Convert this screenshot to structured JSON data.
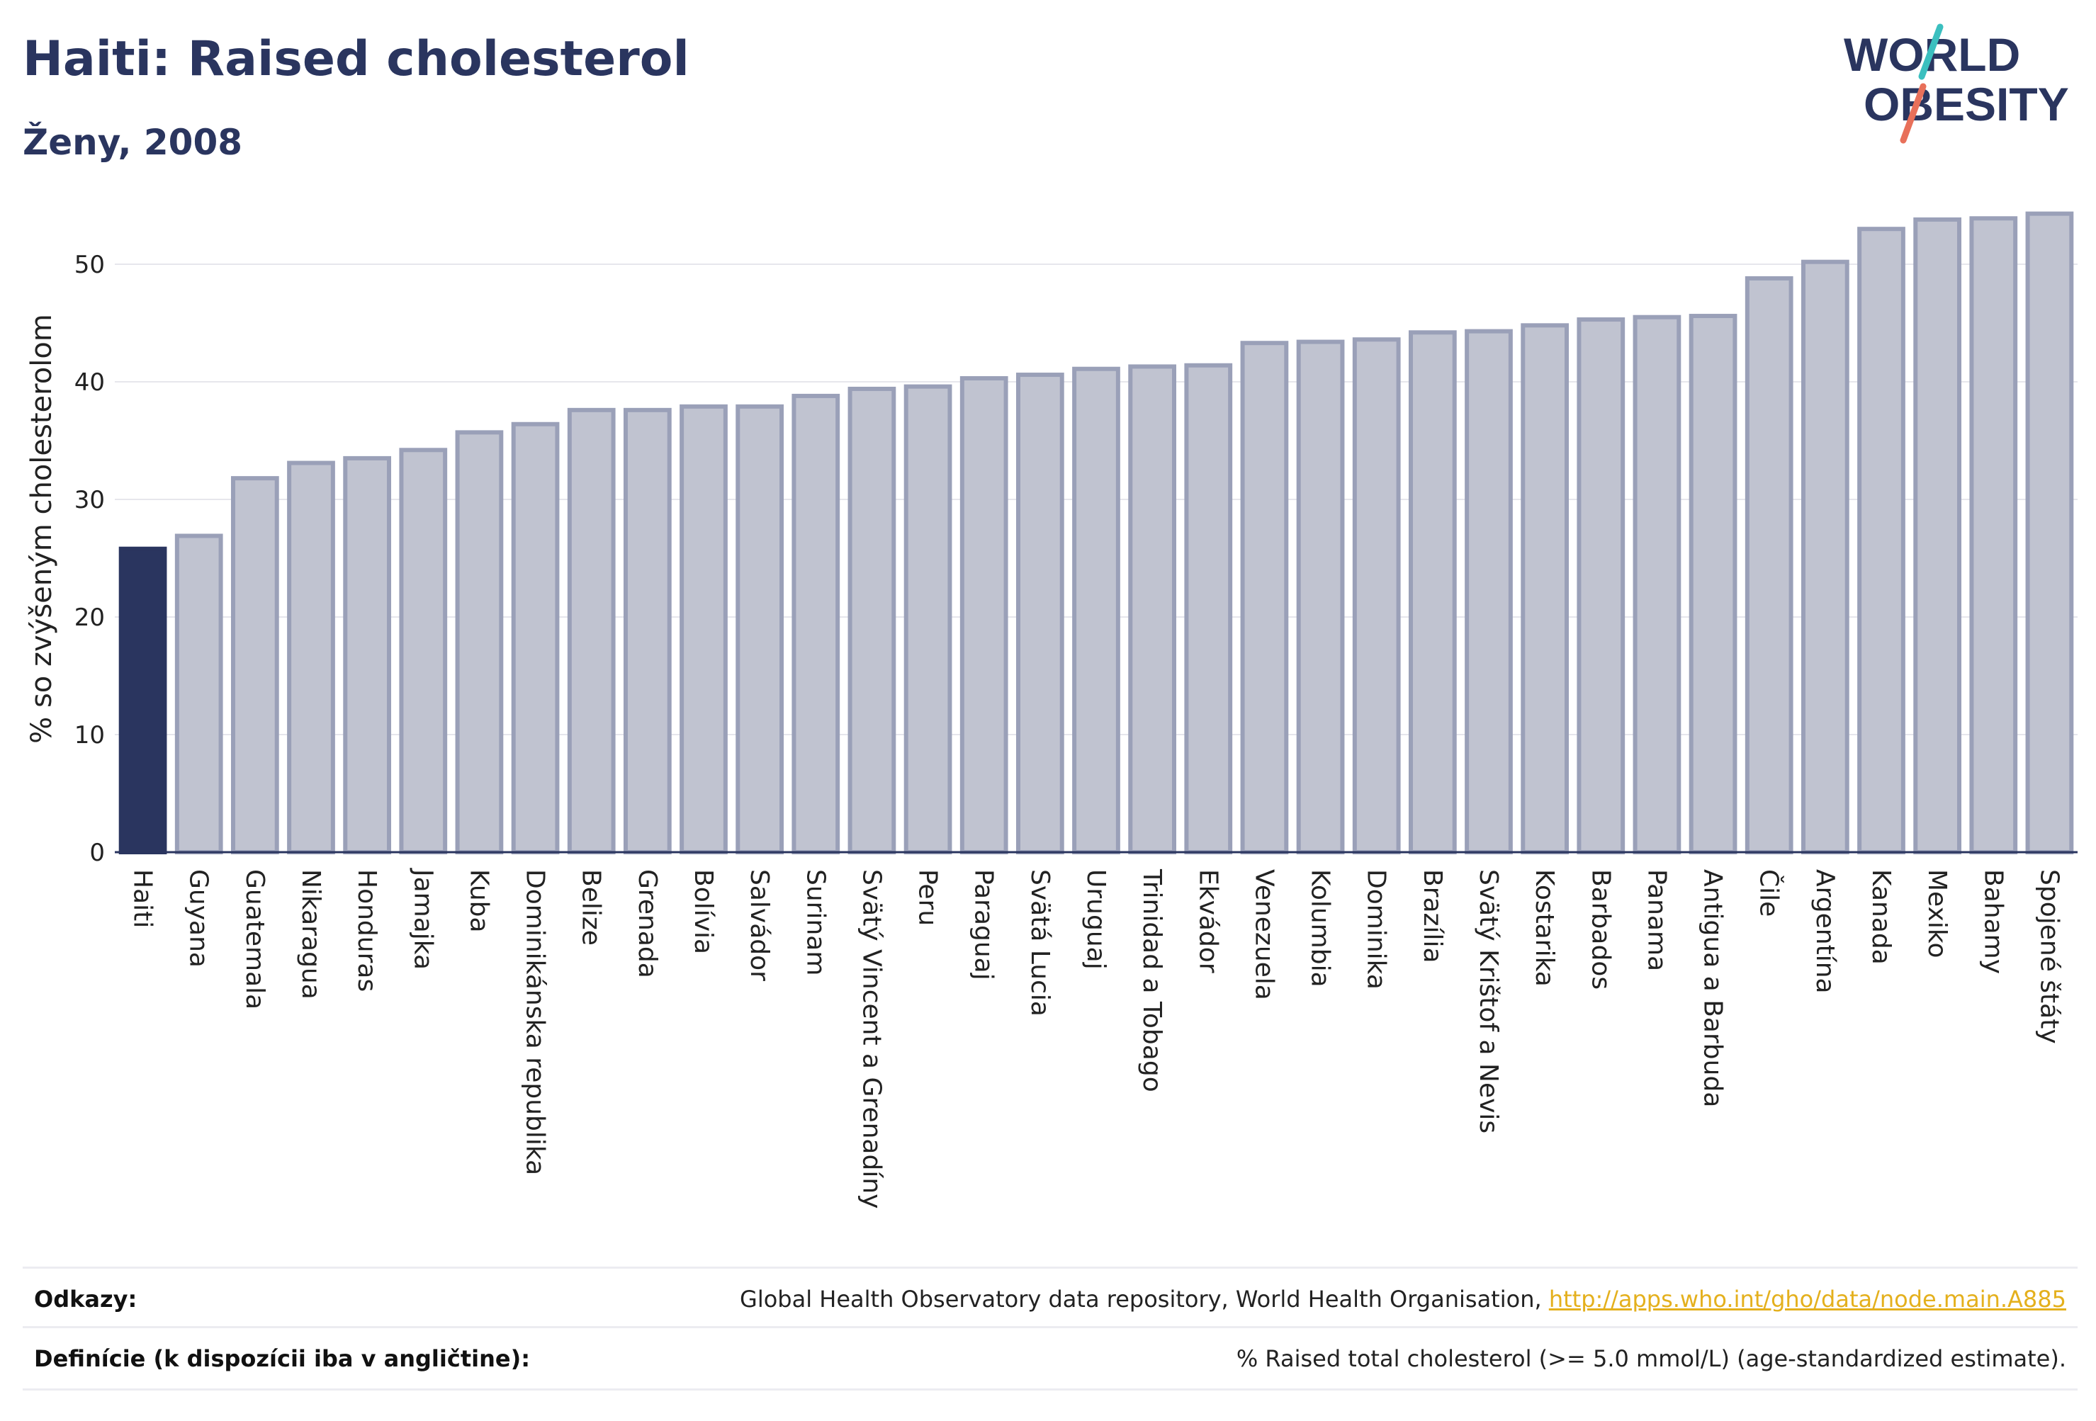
{
  "header": {
    "title": "Haiti: Raised cholesterol",
    "subtitle": "Ženy, 2008"
  },
  "logo": {
    "line1": "WORLD",
    "line2": "OBESITY"
  },
  "footer": {
    "references_label": "Odkazy:",
    "references_text": "Global Health Observatory data repository, World Health Organisation, ",
    "references_link": "http://apps.who.int/gho/data/node.main.A885",
    "definitions_label": "Definície (k dispozícii iba v angličtine):",
    "definitions_text": "% Raised total cholesterol (>= 5.0 mmol/L) (age-standardized estimate)."
  },
  "colors": {
    "highlight": "#2a355f",
    "bar_fill": "#c0c3d0",
    "bar_stroke": "#9aa0b8",
    "grid": "#e6e6ec",
    "link": "#e4b01d"
  },
  "chart_data": {
    "type": "bar",
    "ylabel": "% so zvýšeným cholesterolom",
    "ylim": [
      0,
      55
    ],
    "yticks": [
      0,
      10,
      20,
      30,
      40,
      50
    ],
    "grid": true,
    "highlight_category": "Haiti",
    "categories": [
      "Haiti",
      "Guyana",
      "Guatemala",
      "Nikaragua",
      "Honduras",
      "Jamajka",
      "Kuba",
      "Dominikánska republika",
      "Belize",
      "Grenada",
      "Bolívia",
      "Salvádor",
      "Surinam",
      "Svätý Vincent a Grenadíny",
      "Peru",
      "Paraguaj",
      "Svätá Lucia",
      "Uruguaj",
      "Trinidad a Tobago",
      "Ekvádor",
      "Venezuela",
      "Kolumbia",
      "Dominika",
      "Brazília",
      "Svätý Krištof a Nevis",
      "Kostarika",
      "Barbados",
      "Panama",
      "Antigua a Barbuda",
      "Čile",
      "Argentína",
      "Kanada",
      "Mexiko",
      "Bahamy",
      "Spojené štáty"
    ],
    "values": [
      25.8,
      26.9,
      31.8,
      33.1,
      33.5,
      34.2,
      35.7,
      36.4,
      37.6,
      37.6,
      37.9,
      37.9,
      38.8,
      39.4,
      39.6,
      40.3,
      40.6,
      41.1,
      41.3,
      41.4,
      43.3,
      43.4,
      43.6,
      44.2,
      44.3,
      44.8,
      45.3,
      45.5,
      45.6,
      48.8,
      50.2,
      53.0,
      53.8,
      53.9,
      54.3
    ]
  }
}
